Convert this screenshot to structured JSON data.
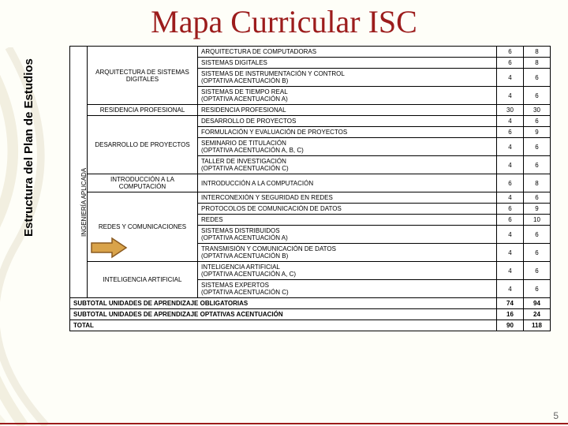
{
  "title": "Mapa Curricular ISC",
  "sidebar_label": "Estructura del Plan de Estudios",
  "area_label": "INGENIERÍA APLICADA",
  "page_number": "5",
  "highlight_box": "INTRODUCCIÓN A LA COMPUTACIÓN",
  "rows": [
    {
      "group": "ARQUITECTURA DE SISTEMAS DIGITALES",
      "group_span": 4,
      "course": "ARQUITECTURA DE COMPUTADORAS",
      "c1": "6",
      "c2": "8"
    },
    {
      "course": "SISTEMAS DIGITALES",
      "c1": "6",
      "c2": "8"
    },
    {
      "course": "SISTEMAS DE INSTRUMENTACIÓN Y CONTROL\n(OPTATIVA ACENTUACIÓN B)",
      "c1": "4",
      "c2": "6"
    },
    {
      "course": "SISTEMAS DE TIEMPO REAL\n(OPTATIVA ACENTUACIÓN A)",
      "c1": "4",
      "c2": "6"
    },
    {
      "group": "RESIDENCIA PROFESIONAL",
      "group_span": 1,
      "course": "RESIDENCIA PROFESIONAL",
      "c1": "30",
      "c2": "30"
    },
    {
      "group": "DESARROLLO DE PROYECTOS",
      "group_span": 4,
      "course": "DESARROLLO DE PROYECTOS",
      "c1": "4",
      "c2": "6"
    },
    {
      "course": "FORMULACIÓN Y EVALUACIÓN DE PROYECTOS",
      "c1": "6",
      "c2": "9"
    },
    {
      "course": "SEMINARIO DE TITULACIÓN\n(OPTATIVA ACENTUACIÓN A, B, C)",
      "c1": "4",
      "c2": "6"
    },
    {
      "course": "TALLER DE INVESTIGACIÓN\n(OPTATIVA ACENTUACIÓN C)",
      "c1": "4",
      "c2": "6"
    },
    {
      "group": "INTRODUCCIÓN A LA COMPUTACIÓN",
      "group_span": 1,
      "course": "INTRODUCCIÓN A LA COMPUTACIÓN",
      "c1": "6",
      "c2": "8"
    },
    {
      "group": "REDES Y COMUNICACIONES",
      "group_span": 5,
      "course": "INTERCONEXIÓN Y SEGURIDAD EN REDES",
      "c1": "4",
      "c2": "6"
    },
    {
      "course": "PROTOCOLOS DE COMUNICACIÓN DE DATOS",
      "c1": "6",
      "c2": "9"
    },
    {
      "course": "REDES",
      "c1": "6",
      "c2": "10"
    },
    {
      "course": "SISTEMAS DISTRIBUIDOS\n(OPTATIVA ACENTUACIÓN A)",
      "c1": "4",
      "c2": "6"
    },
    {
      "course": "TRANSMISIÓN Y COMUNICACIÓN DE DATOS\n(OPTATIVA ACENTUACIÓN B)",
      "c1": "4",
      "c2": "6"
    },
    {
      "group": "INTELIGENCIA ARTIFICIAL",
      "group_span": 2,
      "course": "INTELIGENCIA ARTIFICIAL\n(OPTATIVA ACENTUACIÓN A, C)",
      "c1": "4",
      "c2": "6"
    },
    {
      "course": "SISTEMAS EXPERTOS\n(OPTATIVA ACENTUACIÓN C)",
      "c1": "4",
      "c2": "6"
    }
  ],
  "totals": [
    {
      "label": "SUBTOTAL UNIDADES DE APRENDIZAJE OBLIGATORIAS",
      "c1": "74",
      "c2": "94"
    },
    {
      "label": "SUBTOTAL UNIDADES DE APRENDIZAJE OPTATIVAS ACENTUACIÓN",
      "c1": "16",
      "c2": "24"
    },
    {
      "label": "TOTAL",
      "c1": "90",
      "c2": "118"
    }
  ],
  "colors": {
    "title": "#9c1c1c",
    "arrow_fill": "#d9a34a",
    "arrow_stroke": "#8a5a20",
    "bg": "#fefef8"
  }
}
